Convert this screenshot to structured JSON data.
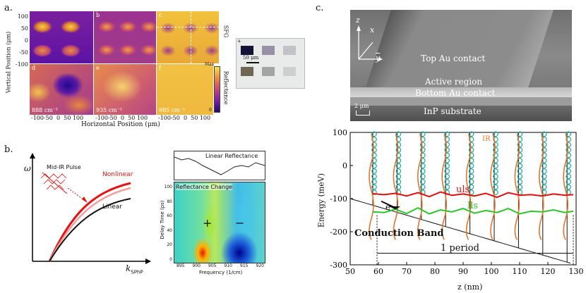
{
  "panel_a": {
    "label": "a.",
    "ylabel": "Vertical Position (μm)",
    "xlabel": "Horizontal Position (μm)",
    "y_ticks": [
      "100",
      "50",
      "0",
      "-50",
      "-100"
    ],
    "x_ticks_1": "-100-50  0  50 100",
    "x_ticks_2": "-100-50  0  50 100",
    "x_ticks_3": "-100-50  0  50 100",
    "sub_labels": [
      "b",
      "c",
      "d",
      "e",
      "f"
    ],
    "wavenumbers": [
      "888 cm⁻¹",
      "935 cm⁻¹",
      "985 cm⁻¹"
    ],
    "sfg_label": "SFG",
    "reflectance_label": "Reflectance",
    "colorbar_max": "Max",
    "colorbar_min": "0",
    "scalebar": "50 μm",
    "inset_label": "a"
  },
  "panel_b": {
    "label": "b.",
    "pulse_label": "Mid-IR Pulse",
    "omega": "ω",
    "nonlinear": "Nonlinear",
    "linear": "Linear",
    "kaxis": "k",
    "kaxis_sub": "SPhP",
    "lin_refl_title": "Linear Reflectance",
    "refl_change_title": "Reflectance Change",
    "delay_label": "Delay Time (ps)",
    "freq_label": "Frequency (1/cm)",
    "delay_ticks": [
      "100",
      "80",
      "60",
      "40",
      "20",
      "0"
    ],
    "freq_ticks": [
      "895",
      "900",
      "905",
      "910",
      "915",
      "920"
    ],
    "plus": "+",
    "minus": "−"
  },
  "panel_c": {
    "label": "c.",
    "top_contact": "Top Au contact",
    "active": "Active region",
    "bottom_contact": "Bottom Au contact",
    "substrate": "InP substrate",
    "scale": "2 μm",
    "axis_z": "z",
    "axis_x": "x",
    "axis_y": "y",
    "ir": "IR",
    "uls": "uls",
    "lls": "lls",
    "electron": "e−",
    "band": "Conduction Band",
    "period": "1 period"
  },
  "chart_data": {
    "type": "line",
    "title": "",
    "xlabel": "z (nm)",
    "ylabel": "Energy (meV)",
    "xlim": [
      50,
      130
    ],
    "ylim": [
      -300,
      100
    ],
    "x_ticks": [
      50,
      60,
      70,
      80,
      90,
      100,
      110,
      120,
      130
    ],
    "y_ticks": [
      100,
      0,
      -100,
      -200,
      -300
    ],
    "series": [
      {
        "name": "uls",
        "x": [
          58,
          62,
          66,
          70,
          74,
          78,
          82,
          86,
          90,
          94,
          98,
          102,
          106,
          110,
          114,
          118,
          122,
          126,
          129
        ],
        "values": [
          -85,
          -88,
          -84,
          -92,
          -82,
          -94,
          -80,
          -90,
          -86,
          -92,
          -84,
          -96,
          -82,
          -90,
          -88,
          -92,
          -86,
          -90,
          -88
        ]
      },
      {
        "name": "lls",
        "x": [
          58,
          62,
          66,
          70,
          74,
          78,
          82,
          86,
          90,
          94,
          98,
          102,
          106,
          110,
          114,
          118,
          122,
          126,
          129
        ],
        "values": [
          -140,
          -142,
          -132,
          -145,
          -128,
          -146,
          -134,
          -140,
          -130,
          -144,
          -136,
          -142,
          -130,
          -146,
          -138,
          -140,
          -134,
          -142,
          -138
        ]
      },
      {
        "name": "Conduction Band",
        "x": [
          50,
          60,
          70,
          80,
          90,
          100,
          110,
          120,
          130
        ],
        "values": [
          -100,
          -115,
          -135,
          -160,
          -185,
          -210,
          -240,
          -270,
          -300
        ]
      }
    ]
  }
}
